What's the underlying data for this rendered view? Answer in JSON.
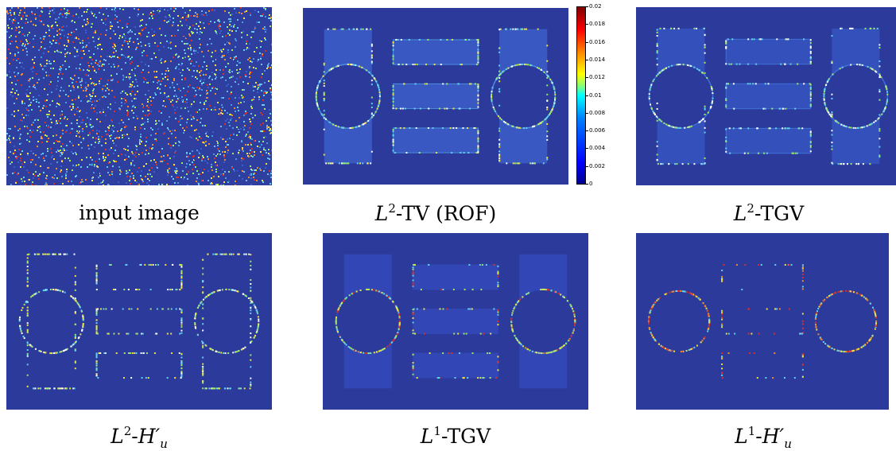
{
  "figure": {
    "panels": [
      {
        "id": "input",
        "caption_plain": "input image"
      },
      {
        "id": "l2tv",
        "caption_plain": "L2-TV (ROF)"
      },
      {
        "id": "l2tgv",
        "caption_plain": "L2-TGV"
      },
      {
        "id": "l2hu",
        "caption_plain": "L2-H'u"
      },
      {
        "id": "l1tgv",
        "caption_plain": "L1-TGV"
      },
      {
        "id": "l1hu",
        "caption_plain": "L1-H'u"
      }
    ],
    "captions": {
      "input": "input image",
      "l2tv_L": "L",
      "l2tv_sup": "2",
      "l2tv_rest": "-TV (ROF)",
      "l2tgv_L": "L",
      "l2tgv_sup": "2",
      "l2tgv_rest": "-TGV",
      "l2hu_L": "L",
      "l2hu_sup": "2",
      "l2hu_H": "H′",
      "l2hu_sub": "u",
      "l1tgv_L": "L",
      "l1tgv_sup": "1",
      "l1tgv_rest": "-TGV",
      "l1hu_L": "L",
      "l1hu_sup": "1",
      "l1hu_H": "H′",
      "l1hu_sub": "u"
    },
    "colorbar": {
      "ticks": [
        "0.02",
        "0.018",
        "0.016",
        "0.014",
        "0.012",
        "0.01",
        "0.008",
        "0.006",
        "0.004",
        "0.002",
        "0"
      ],
      "min": 0,
      "max": 0.02,
      "colormap": "jet"
    },
    "colors": {
      "background_blue": "#2b3a9b",
      "border_blue": "#2f48b8",
      "edge_cyan": "#5fd3f0",
      "edge_yellow": "#f1e345",
      "edge_red": "#d9312a"
    }
  }
}
